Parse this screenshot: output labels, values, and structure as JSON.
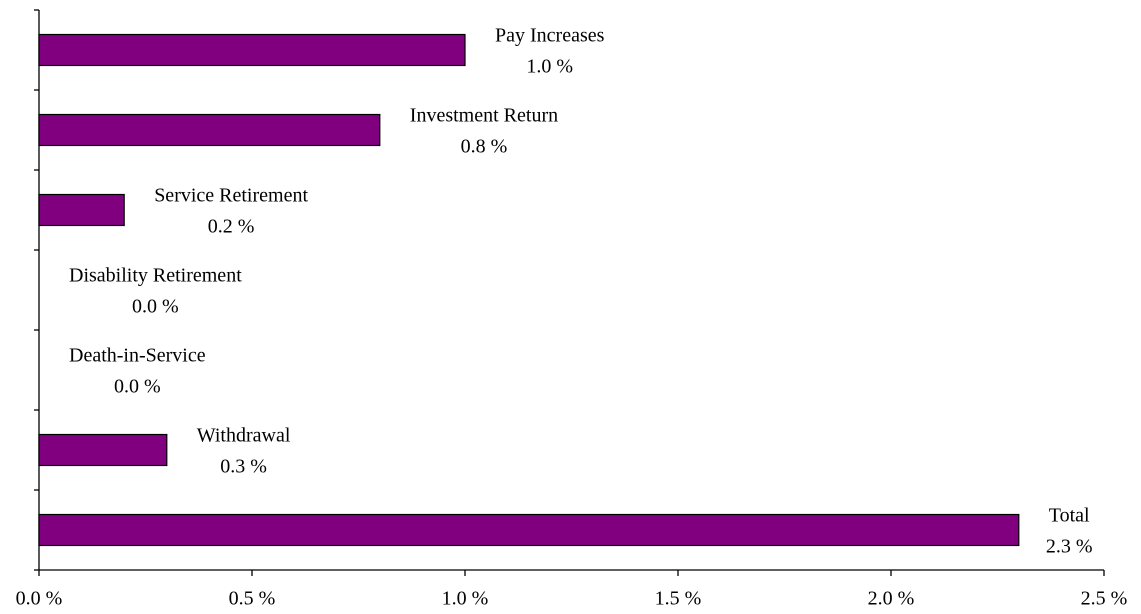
{
  "chart_data": {
    "type": "barh",
    "categories": [
      "Pay Increases",
      "Investment Return",
      "Service Retirement",
      "Disability Retirement",
      "Death-in-Service",
      "Withdrawal",
      "Total"
    ],
    "values": [
      1.0,
      0.8,
      0.2,
      0.0,
      0.0,
      0.3,
      2.3
    ],
    "value_labels": [
      "1.0 %",
      "0.8 %",
      "0.2 %",
      "0.0 %",
      "0.0 %",
      "0.3 %",
      "2.3 %"
    ],
    "color": "#800080",
    "xlim": [
      0,
      2.5
    ],
    "xticks": [
      {
        "value": 0,
        "label": "0.0 %"
      },
      {
        "value": 0.5,
        "label": "0.5 %"
      },
      {
        "value": 1.0,
        "label": "1.0 %"
      },
      {
        "value": 1.5,
        "label": "1.5 %"
      },
      {
        "value": 2.0,
        "label": "2.0 %"
      },
      {
        "value": 2.5,
        "label": "2.5 %"
      }
    ],
    "grid": false
  }
}
